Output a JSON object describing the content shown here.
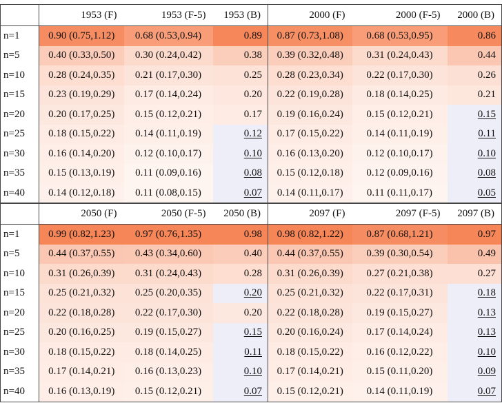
{
  "top": {
    "headers": [
      "",
      "1953 (F)",
      "1953 (F-5)",
      "1953 (B)",
      "2000 (F)",
      "2000 (F-5)",
      "2000 (B)"
    ],
    "rows": [
      {
        "label": "n=1",
        "cells": [
          "0.90 (0.75,1.12)",
          "0.68 (0.53,0.94)",
          "0.89",
          "0.87 (0.73,1.08)",
          "0.68 (0.53,0.95)",
          "0.86"
        ],
        "shades": [
          0.86,
          0.74,
          0.9,
          0.84,
          0.74,
          0.88
        ],
        "underline": [
          false,
          false,
          false,
          false,
          false,
          false
        ]
      },
      {
        "label": "n=5",
        "cells": [
          "0.40 (0.33,0.50)",
          "0.30 (0.24,0.42)",
          "0.38",
          "0.39 (0.32,0.48)",
          "0.31 (0.24,0.43)",
          "0.44"
        ],
        "shades": [
          0.38,
          0.28,
          0.37,
          0.37,
          0.28,
          0.42
        ],
        "underline": [
          false,
          false,
          false,
          false,
          false,
          false
        ]
      },
      {
        "label": "n=10",
        "cells": [
          "0.28 (0.24,0.35)",
          "0.21 (0.17,0.30)",
          "0.25",
          "0.28 (0.23,0.34)",
          "0.22 (0.17,0.30)",
          "0.26"
        ],
        "shades": [
          0.25,
          0.2,
          0.22,
          0.25,
          0.2,
          0.23
        ],
        "underline": [
          false,
          false,
          false,
          false,
          false,
          false
        ]
      },
      {
        "label": "n=15",
        "cells": [
          "0.23 (0.19,0.29)",
          "0.17 (0.14,0.24)",
          "0.20",
          "0.22 (0.19,0.28)",
          "0.18 (0.14,0.25)",
          "0.21"
        ],
        "shades": [
          0.2,
          0.15,
          0.18,
          0.2,
          0.16,
          0.19
        ],
        "underline": [
          false,
          false,
          false,
          false,
          false,
          false
        ]
      },
      {
        "label": "n=20",
        "cells": [
          "0.20 (0.17,0.25)",
          "0.15 (0.12,0.21)",
          "0.17",
          "0.19 (0.16,0.24)",
          "0.15 (0.12,0.21)",
          "0.15"
        ],
        "shades": [
          0.17,
          0.13,
          0.15,
          0.17,
          0.13,
          -1
        ],
        "underline": [
          false,
          false,
          false,
          false,
          false,
          true
        ]
      },
      {
        "label": "n=25",
        "cells": [
          "0.18 (0.15,0.22)",
          "0.14 (0.11,0.19)",
          "0.12",
          "0.17 (0.15,0.22)",
          "0.14 (0.11,0.19)",
          "0.11"
        ],
        "shades": [
          0.15,
          0.12,
          -1,
          0.15,
          0.12,
          -1
        ],
        "underline": [
          false,
          false,
          true,
          false,
          false,
          true
        ]
      },
      {
        "label": "n=30",
        "cells": [
          "0.16 (0.14,0.20)",
          "0.12 (0.10,0.17)",
          "0.10",
          "0.16 (0.13,0.20)",
          "0.12 (0.10,0.17)",
          "0.10"
        ],
        "shades": [
          0.13,
          0.1,
          -1,
          0.13,
          0.1,
          -1
        ],
        "underline": [
          false,
          false,
          true,
          false,
          false,
          true
        ]
      },
      {
        "label": "n=35",
        "cells": [
          "0.15 (0.13,0.19)",
          "0.11 (0.09,0.16)",
          "0.08",
          "0.15 (0.12,0.18)",
          "0.12 (0.09,0.16)",
          "0.08"
        ],
        "shades": [
          0.12,
          0.08,
          -1,
          0.12,
          0.09,
          -1
        ],
        "underline": [
          false,
          false,
          true,
          false,
          false,
          true
        ]
      },
      {
        "label": "n=40",
        "cells": [
          "0.14 (0.12,0.18)",
          "0.11 (0.08,0.15)",
          "0.07",
          "0.14 (0.11,0.17)",
          "0.11 (0.11,0.17)",
          "0.05"
        ],
        "shades": [
          0.11,
          0.08,
          -1,
          0.11,
          0.08,
          -1
        ],
        "underline": [
          false,
          false,
          true,
          false,
          false,
          true
        ]
      }
    ]
  },
  "bottom": {
    "headers": [
      "",
      "2050 (F)",
      "2050 (F-5)",
      "2050 (B)",
      "2097 (F)",
      "2097 (F-5)",
      "2097 (B)"
    ],
    "rows": [
      {
        "label": "n=1",
        "cells": [
          "0.99 (0.82,1.23)",
          "0.97 (0.76,1.35)",
          "0.98",
          "0.98 (0.82,1.22)",
          "0.87 (0.68,1.21)",
          "0.97"
        ],
        "shades": [
          0.92,
          0.91,
          0.92,
          0.92,
          0.86,
          0.91
        ],
        "underline": [
          false,
          false,
          false,
          false,
          false,
          false
        ]
      },
      {
        "label": "n=5",
        "cells": [
          "0.44 (0.37,0.55)",
          "0.43 (0.34,0.60)",
          "0.40",
          "0.44 (0.37,0.55)",
          "0.39 (0.30,0.54)",
          "0.49"
        ],
        "shades": [
          0.42,
          0.41,
          0.38,
          0.42,
          0.37,
          0.46
        ],
        "underline": [
          false,
          false,
          false,
          false,
          false,
          false
        ]
      },
      {
        "label": "n=10",
        "cells": [
          "0.31 (0.26,0.39)",
          "0.31 (0.24,0.43)",
          "0.28",
          "0.31 (0.26,0.39)",
          "0.27 (0.21,0.38)",
          "0.27"
        ],
        "shades": [
          0.28,
          0.28,
          0.25,
          0.28,
          0.24,
          0.24
        ],
        "underline": [
          false,
          false,
          false,
          false,
          false,
          false
        ]
      },
      {
        "label": "n=15",
        "cells": [
          "0.25 (0.21,0.32)",
          "0.25 (0.20,0.35)",
          "0.20",
          "0.25 (0.21,0.32)",
          "0.22 (0.17,0.31)",
          "0.18"
        ],
        "shades": [
          0.22,
          0.22,
          -1,
          0.22,
          0.2,
          -1
        ],
        "underline": [
          false,
          false,
          true,
          false,
          false,
          true
        ]
      },
      {
        "label": "n=20",
        "cells": [
          "0.22 (0.18,0.28)",
          "0.22 (0.17,0.30)",
          "0.20",
          "0.22 (0.18,0.28)",
          "0.19 (0.15,0.27)",
          "0.13"
        ],
        "shades": [
          0.2,
          0.2,
          0.17,
          0.2,
          0.17,
          -1
        ],
        "underline": [
          false,
          false,
          false,
          false,
          false,
          true
        ]
      },
      {
        "label": "n=25",
        "cells": [
          "0.20 (0.16,0.25)",
          "0.19 (0.15,0.27)",
          "0.15",
          "0.20 (0.16,0.24)",
          "0.17 (0.14,0.24)",
          "0.13"
        ],
        "shades": [
          0.17,
          0.17,
          -1,
          0.17,
          0.15,
          -1
        ],
        "underline": [
          false,
          false,
          true,
          false,
          false,
          true
        ]
      },
      {
        "label": "n=30",
        "cells": [
          "0.18 (0.15,0.22)",
          "0.18 (0.14,0.25)",
          "0.11",
          "0.18 (0.15,0.22)",
          "0.16 (0.12,0.22)",
          "0.10"
        ],
        "shades": [
          0.15,
          0.15,
          -1,
          0.15,
          0.13,
          -1
        ],
        "underline": [
          false,
          false,
          true,
          false,
          false,
          true
        ]
      },
      {
        "label": "n=35",
        "cells": [
          "0.17 (0.14,0.21)",
          "0.16 (0.13,0.23)",
          "0.10",
          "0.17 (0.14,0.21)",
          "0.15 (0.11,0.20)",
          "0.09"
        ],
        "shades": [
          0.14,
          0.13,
          -1,
          0.14,
          0.12,
          -1
        ],
        "underline": [
          false,
          false,
          true,
          false,
          false,
          true
        ]
      },
      {
        "label": "n=40",
        "cells": [
          "0.16 (0.13,0.19)",
          "0.15 (0.12,0.21)",
          "0.07",
          "0.15 (0.12,0.21)",
          "0.14 (0.11,0.19)",
          "0.07"
        ],
        "shades": [
          0.13,
          0.12,
          -1,
          0.12,
          0.11,
          -1
        ],
        "underline": [
          false,
          false,
          true,
          false,
          false,
          true
        ]
      }
    ]
  },
  "colors": {
    "hot": "#f57a48",
    "cold": "#ffffff",
    "below_threshold": "#eeeef8",
    "rule": "#444444"
  }
}
